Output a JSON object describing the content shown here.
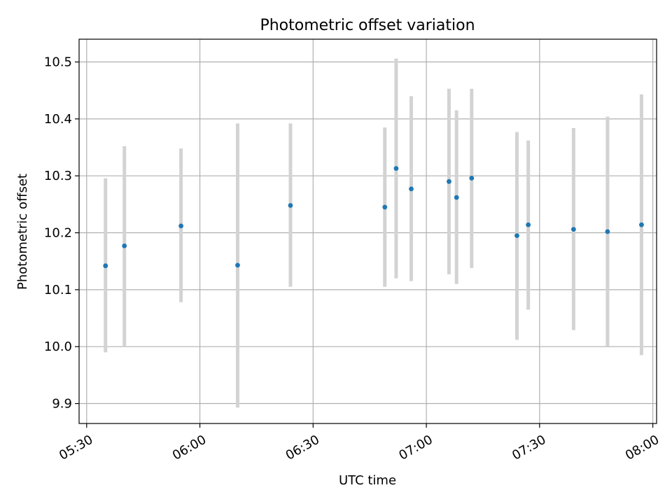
{
  "chart_data": {
    "type": "scatter",
    "title": "Photometric offset variation",
    "xlabel": "UTC time",
    "ylabel": "Photometric offset",
    "x_ticks": [
      "05:30",
      "06:00",
      "06:30",
      "07:00",
      "07:30",
      "08:00"
    ],
    "y_ticks": [
      "9.9",
      "10.0",
      "10.1",
      "10.2",
      "10.3",
      "10.4",
      "10.5"
    ],
    "xlim": [
      "05:28",
      "08:01"
    ],
    "ylim": [
      9.865,
      10.54
    ],
    "grid": true,
    "series": [
      {
        "x": [
          "05:35",
          "05:40",
          "05:55",
          "06:10",
          "06:24",
          "06:49",
          "06:52",
          "06:56",
          "07:06",
          "07:08",
          "07:12",
          "07:24",
          "07:27",
          "07:39",
          "07:48",
          "07:57"
        ],
        "y": [
          10.142,
          10.177,
          10.212,
          10.143,
          10.248,
          10.245,
          10.313,
          10.277,
          10.29,
          10.262,
          10.296,
          10.195,
          10.214,
          10.206,
          10.202,
          10.214
        ],
        "y_low": [
          9.99,
          10.0,
          10.078,
          9.893,
          10.105,
          10.105,
          10.12,
          10.115,
          10.127,
          10.11,
          10.138,
          10.012,
          10.065,
          10.029,
          10.001,
          9.985
        ],
        "y_high": [
          10.296,
          10.352,
          10.348,
          10.392,
          10.392,
          10.385,
          10.506,
          10.44,
          10.453,
          10.415,
          10.453,
          10.377,
          10.362,
          10.384,
          10.404,
          10.443
        ]
      }
    ],
    "colors": {
      "marker": "#1f77b4",
      "errorbar": "#d3d3d3",
      "grid": "#b0b0b0",
      "axes": "#000000"
    }
  }
}
